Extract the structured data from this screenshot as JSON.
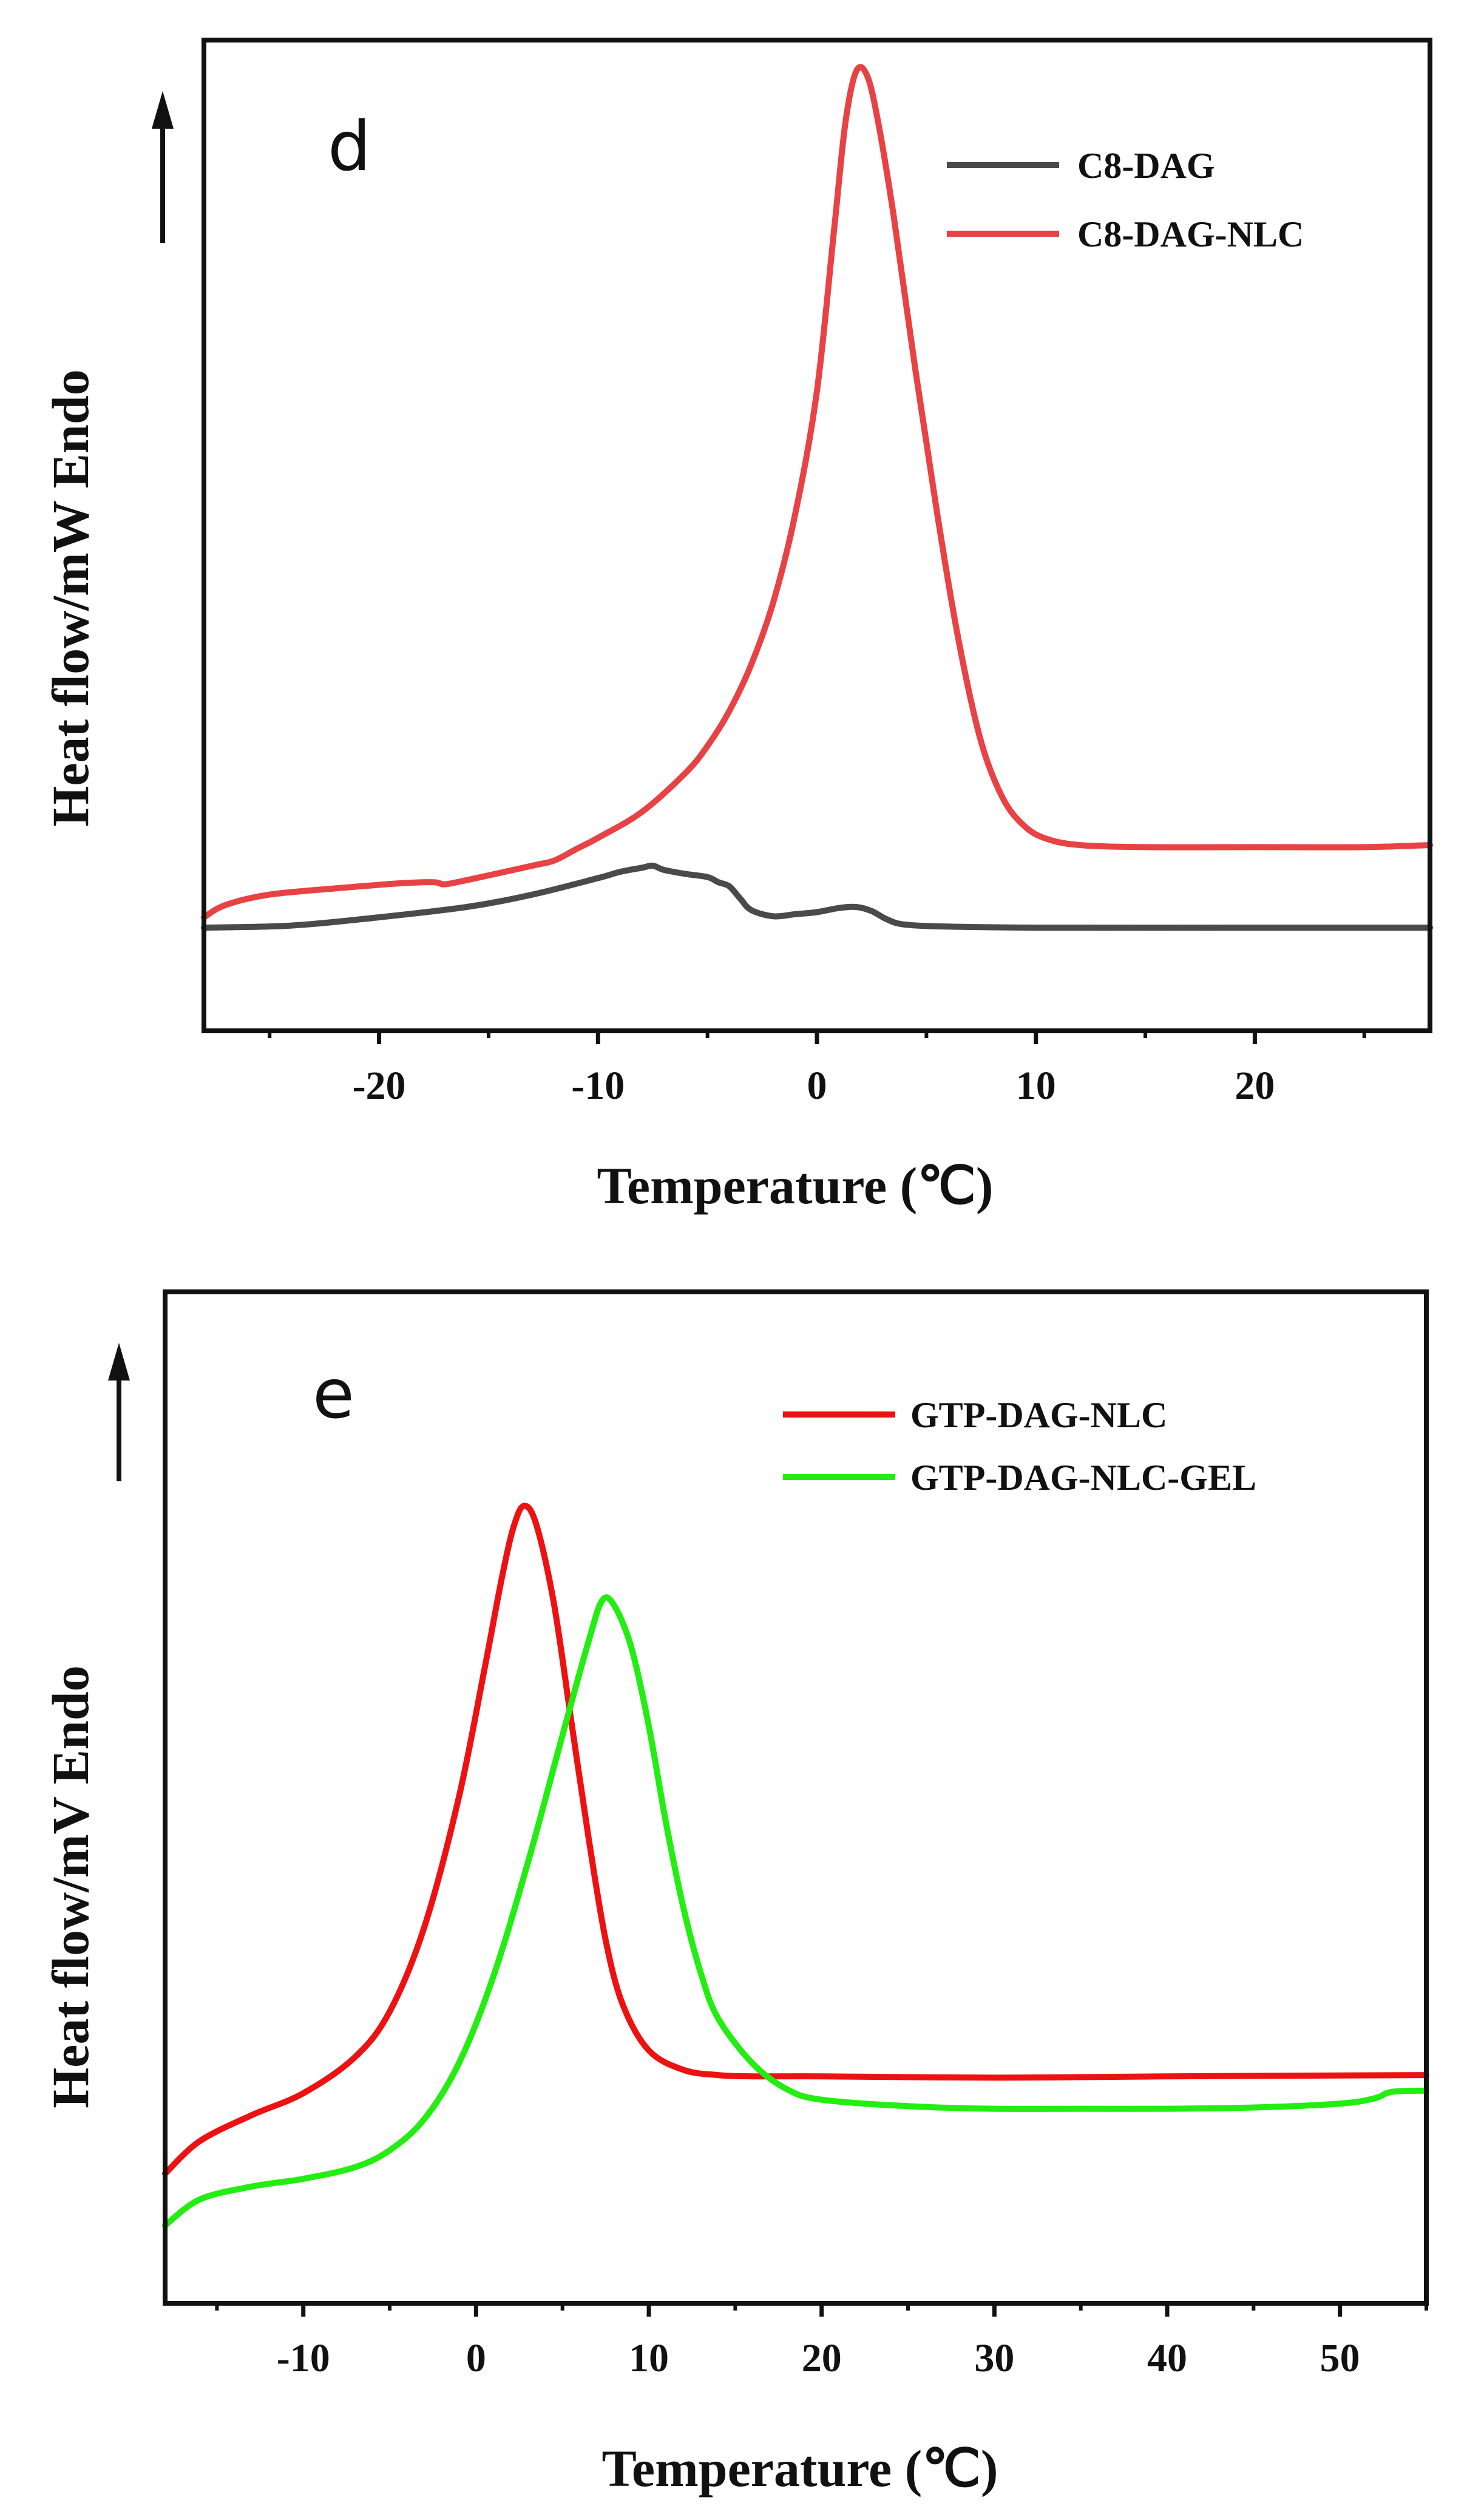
{
  "chart_data": [
    {
      "type": "line",
      "panel_label": "d",
      "xlabel": "Temperature (℃)",
      "ylabel": "Heat flow/mW Endo",
      "xlim": [
        -28,
        28
      ],
      "ylim": [
        -1.0,
        8.6
      ],
      "x_ticks": [
        -20,
        -10,
        0,
        10,
        20
      ],
      "x_tick_labels": [
        "-20",
        "-10",
        "0",
        "10",
        "20"
      ],
      "legend_position": "top-right",
      "series": [
        {
          "name": "C8-DAG",
          "color": "#4a4a4a",
          "points": [
            [
              -28,
              0.0
            ],
            [
              -24,
              0.02
            ],
            [
              -20,
              0.1
            ],
            [
              -16,
              0.2
            ],
            [
              -13,
              0.32
            ],
            [
              -10,
              0.48
            ],
            [
              -9,
              0.54
            ],
            [
              -8,
              0.58
            ],
            [
              -7.5,
              0.6
            ],
            [
              -7,
              0.56
            ],
            [
              -6,
              0.52
            ],
            [
              -5,
              0.49
            ],
            [
              -4.5,
              0.44
            ],
            [
              -4,
              0.4
            ],
            [
              -3.5,
              0.28
            ],
            [
              -3,
              0.17
            ],
            [
              -2,
              0.11
            ],
            [
              -1,
              0.13
            ],
            [
              0,
              0.15
            ],
            [
              1,
              0.19
            ],
            [
              1.8,
              0.2
            ],
            [
              2.5,
              0.16
            ],
            [
              3.2,
              0.08
            ],
            [
              4,
              0.03
            ],
            [
              6,
              0.01
            ],
            [
              10,
              0.0
            ],
            [
              20,
              0.0
            ],
            [
              28,
              0.0
            ]
          ]
        },
        {
          "name": "C8-DAG-NLC",
          "color": "#e84244",
          "points": [
            [
              -28,
              0.1
            ],
            [
              -27,
              0.22
            ],
            [
              -25,
              0.32
            ],
            [
              -22,
              0.38
            ],
            [
              -19,
              0.43
            ],
            [
              -17.5,
              0.44
            ],
            [
              -17,
              0.42
            ],
            [
              -16,
              0.46
            ],
            [
              -13,
              0.6
            ],
            [
              -12,
              0.65
            ],
            [
              -11,
              0.76
            ],
            [
              -10,
              0.87
            ],
            [
              -8,
              1.12
            ],
            [
              -6,
              1.5
            ],
            [
              -5,
              1.76
            ],
            [
              -4,
              2.1
            ],
            [
              -3,
              2.55
            ],
            [
              -2,
              3.15
            ],
            [
              -1,
              4.0
            ],
            [
              0,
              5.2
            ],
            [
              0.8,
              6.8
            ],
            [
              1.3,
              7.8
            ],
            [
              1.8,
              8.3
            ],
            [
              2.3,
              8.25
            ],
            [
              2.8,
              7.8
            ],
            [
              3.5,
              6.9
            ],
            [
              4.5,
              5.4
            ],
            [
              5.5,
              4.0
            ],
            [
              6.5,
              2.75
            ],
            [
              7.5,
              1.8
            ],
            [
              8.5,
              1.25
            ],
            [
              9.5,
              0.98
            ],
            [
              10.5,
              0.86
            ],
            [
              12,
              0.8
            ],
            [
              15,
              0.78
            ],
            [
              20,
              0.78
            ],
            [
              25,
              0.78
            ],
            [
              28,
              0.8
            ]
          ]
        }
      ]
    },
    {
      "type": "line",
      "panel_label": "e",
      "xlabel": "Temperature (℃)",
      "ylabel": "Heat flow/mV Endo",
      "xlim": [
        -18,
        55
      ],
      "ylim": [
        -0.6,
        7.2
      ],
      "x_ticks": [
        -10,
        0,
        10,
        20,
        30,
        40,
        50
      ],
      "x_tick_labels": [
        "-10",
        "0",
        "10",
        "20",
        "30",
        "40",
        "50"
      ],
      "legend_position": "top-right",
      "series": [
        {
          "name": "GTP-DAG-NLC",
          "color": "#ee1111",
          "points": [
            [
              -18,
              0.4
            ],
            [
              -16,
              0.65
            ],
            [
              -13,
              0.85
            ],
            [
              -10,
              1.02
            ],
            [
              -7,
              1.3
            ],
            [
              -5,
              1.65
            ],
            [
              -3,
              2.3
            ],
            [
              -1,
              3.3
            ],
            [
              0.5,
              4.3
            ],
            [
              1.5,
              5.0
            ],
            [
              2.2,
              5.4
            ],
            [
              2.8,
              5.55
            ],
            [
              3.5,
              5.4
            ],
            [
              4.5,
              4.8
            ],
            [
              5.5,
              3.9
            ],
            [
              6.5,
              3.0
            ],
            [
              7.5,
              2.2
            ],
            [
              8.5,
              1.7
            ],
            [
              10,
              1.35
            ],
            [
              12,
              1.2
            ],
            [
              14,
              1.16
            ],
            [
              16,
              1.15
            ],
            [
              20,
              1.15
            ],
            [
              30,
              1.14
            ],
            [
              40,
              1.15
            ],
            [
              55,
              1.16
            ]
          ]
        },
        {
          "name": "GTP-DAG-NLC-GEL",
          "color": "#22ee11",
          "points": [
            [
              -18,
              0.0
            ],
            [
              -16,
              0.2
            ],
            [
              -13,
              0.3
            ],
            [
              -10,
              0.36
            ],
            [
              -7,
              0.45
            ],
            [
              -5,
              0.58
            ],
            [
              -3,
              0.82
            ],
            [
              -1,
              1.25
            ],
            [
              1,
              1.92
            ],
            [
              3,
              2.8
            ],
            [
              5,
              3.78
            ],
            [
              6.5,
              4.5
            ],
            [
              7.3,
              4.82
            ],
            [
              8,
              4.78
            ],
            [
              9,
              4.45
            ],
            [
              10,
              3.85
            ],
            [
              11,
              3.1
            ],
            [
              12,
              2.45
            ],
            [
              13,
              1.95
            ],
            [
              14,
              1.6
            ],
            [
              16,
              1.25
            ],
            [
              18,
              1.05
            ],
            [
              20,
              0.97
            ],
            [
              25,
              0.92
            ],
            [
              30,
              0.9
            ],
            [
              35,
              0.9
            ],
            [
              40,
              0.9
            ],
            [
              45,
              0.91
            ],
            [
              50,
              0.94
            ],
            [
              52,
              0.98
            ],
            [
              53,
              1.03
            ],
            [
              55,
              1.04
            ]
          ]
        }
      ]
    }
  ]
}
